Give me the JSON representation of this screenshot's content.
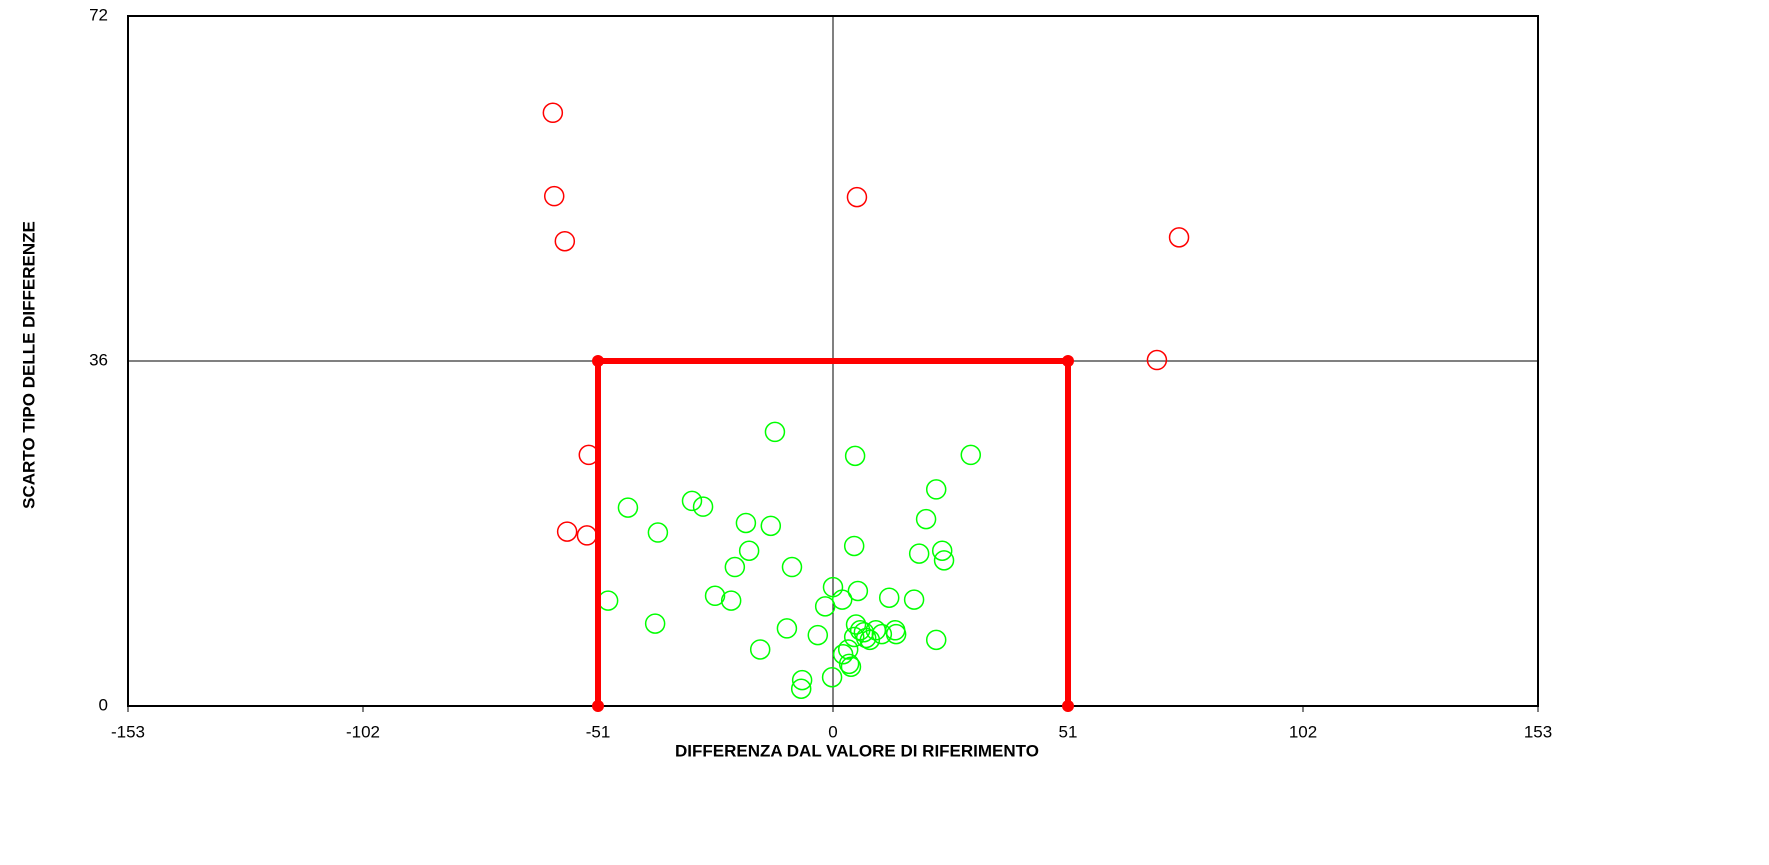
{
  "chart_data": {
    "type": "scatter",
    "xlabel": "DIFFERENZA DAL VALORE DI RIFERIMENTO",
    "ylabel": "SCARTO TIPO DELLE DIFFERENZE",
    "xlim": [
      -153,
      153
    ],
    "xticks": [
      -153,
      -102,
      -51,
      0,
      51,
      102,
      153
    ],
    "ylim": [
      0,
      72
    ],
    "yticks": [
      0,
      36,
      72
    ],
    "grid": "y",
    "series": [
      {
        "color": "#ff0000",
        "mode": "markers",
        "x": [
          -60.8,
          -60.5,
          -58.2,
          5.2,
          75.1,
          70.3,
          -53.0,
          -57.7,
          -53.4
        ],
        "values": [
          61.9,
          53.2,
          48.5,
          53.1,
          48.9,
          36.1,
          26.2,
          18.2,
          17.8
        ]
      },
      {
        "color": "#00ff00",
        "mode": "markers",
        "x": [
          -12.6,
          4.8,
          29.9,
          22.4,
          -30.6,
          -28.2,
          -44.5,
          20.2,
          -18.9,
          -13.5,
          -38.0,
          4.6,
          -18.2,
          23.7,
          18.7,
          24.1,
          -21.3,
          -8.9,
          0,
          5.4,
          -25.6,
          -48.8,
          -22.1,
          2.0,
          12.2,
          17.6,
          -1.7,
          -38.6,
          5.0,
          5.9,
          6.7,
          9.3,
          7.2,
          8.0,
          10.6,
          13.5,
          13.7,
          4.6,
          -10.0,
          -3.3,
          22.4,
          -15.8,
          3.3,
          2.2,
          3.5,
          3.9,
          -6.7,
          -6.9,
          -0.2
        ],
        "values": [
          28.6,
          26.1,
          26.2,
          22.6,
          21.4,
          20.8,
          20.7,
          19.5,
          19.1,
          18.8,
          18.1,
          16.7,
          16.2,
          16.2,
          15.9,
          15.2,
          14.5,
          14.5,
          12.4,
          12.0,
          11.5,
          11.0,
          11.0,
          11.1,
          11.3,
          11.1,
          10.4,
          8.6,
          8.5,
          7.9,
          7.7,
          7.9,
          7.1,
          6.9,
          7.5,
          7.9,
          7.5,
          7.2,
          8.1,
          7.4,
          6.9,
          5.9,
          5.9,
          5.4,
          4.4,
          4.1,
          2.7,
          1.8,
          3.0
        ]
      },
      {
        "color": "#ff0000",
        "mode": "line",
        "x": [
          -51,
          -51,
          51,
          51
        ],
        "values": [
          0,
          36,
          36,
          0
        ]
      }
    ]
  }
}
